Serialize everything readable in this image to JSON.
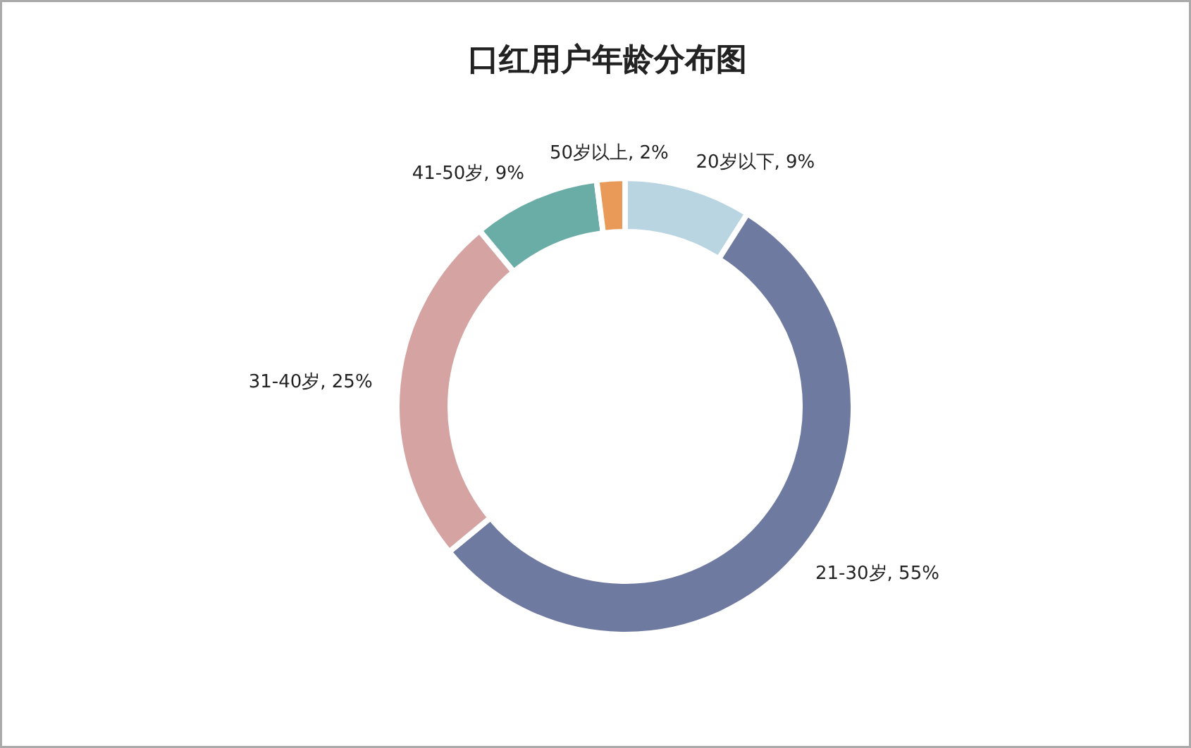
{
  "chart_data": {
    "type": "donut",
    "title": "口红用户年龄分布图",
    "categories": [
      "20岁以下",
      "21-30岁",
      "31-40岁",
      "41-50岁",
      "50岁以上"
    ],
    "values": [
      9,
      55,
      25,
      9,
      2
    ],
    "value_labels": [
      "9%",
      "55%",
      "25%",
      "9%",
      "2%"
    ],
    "colors": [
      "#b9d5e2",
      "#6f7aa1",
      "#d4a3a2",
      "#6aaca6",
      "#e99a59"
    ]
  }
}
